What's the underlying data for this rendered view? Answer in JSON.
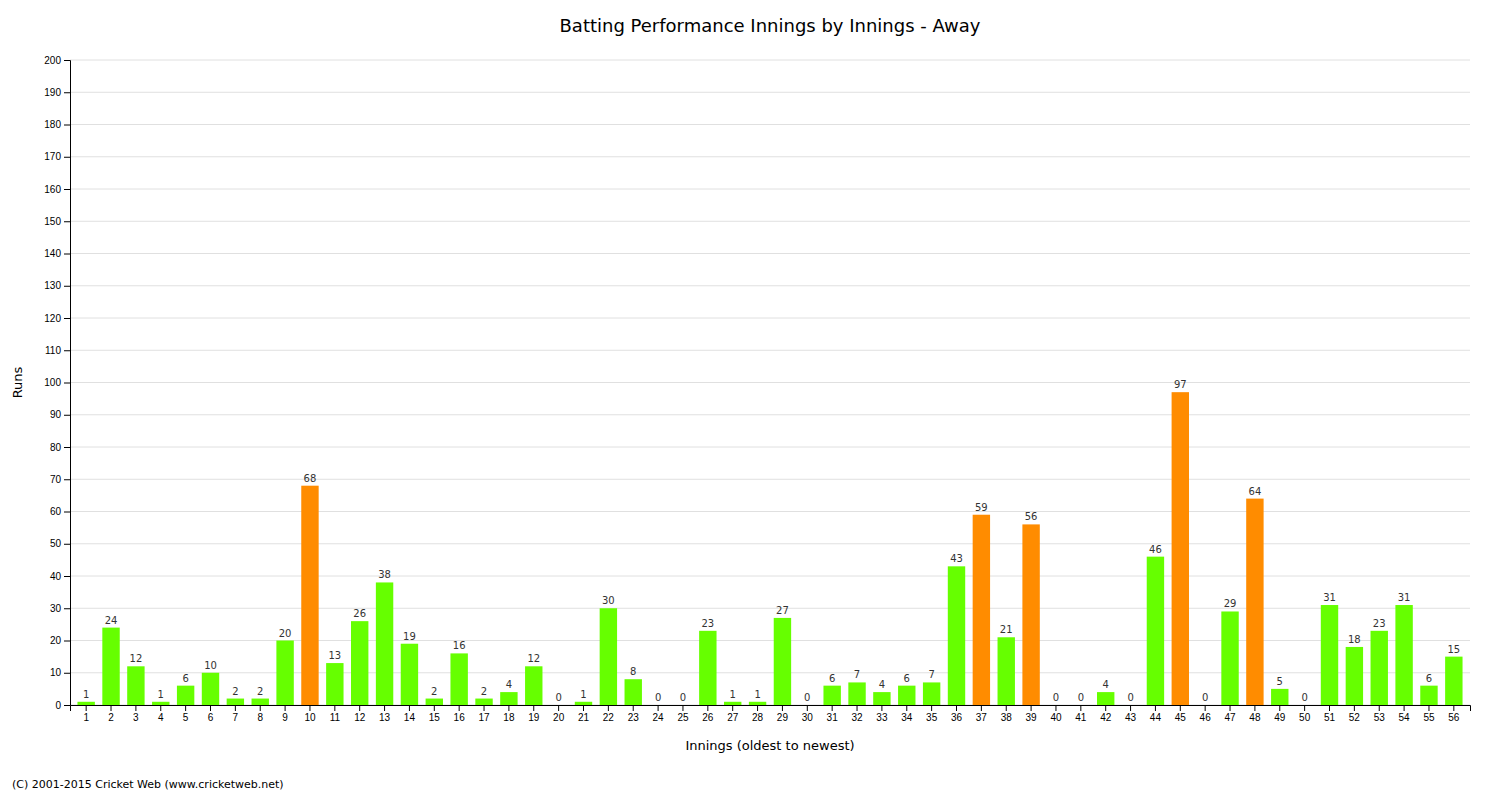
{
  "chart_data": {
    "type": "bar",
    "title": "Batting Performance Innings by Innings - Away",
    "xlabel": "Innings (oldest to newest)",
    "ylabel": "Runs",
    "annotations": [
      "(C) 2001-2015 Cricket Web (www.cricketweb.net)"
    ],
    "categories": [
      "1",
      "2",
      "3",
      "4",
      "5",
      "6",
      "7",
      "8",
      "9",
      "10",
      "11",
      "12",
      "13",
      "14",
      "15",
      "16",
      "17",
      "18",
      "19",
      "20",
      "21",
      "22",
      "23",
      "24",
      "25",
      "26",
      "27",
      "28",
      "29",
      "30",
      "31",
      "32",
      "33",
      "34",
      "35",
      "36",
      "37",
      "38",
      "39",
      "40",
      "41",
      "42",
      "43",
      "44",
      "45",
      "46",
      "47",
      "48",
      "49",
      "50",
      "51",
      "52",
      "53",
      "54",
      "55",
      "56"
    ],
    "values": [
      1,
      24,
      12,
      1,
      6,
      10,
      2,
      2,
      20,
      68,
      13,
      26,
      38,
      19,
      2,
      16,
      2,
      4,
      12,
      0,
      1,
      30,
      8,
      0,
      0,
      23,
      1,
      1,
      27,
      0,
      6,
      7,
      4,
      6,
      7,
      43,
      59,
      21,
      56,
      0,
      0,
      4,
      0,
      46,
      97,
      0,
      29,
      64,
      5,
      0,
      31,
      18,
      23,
      31,
      6,
      15
    ],
    "colors": [
      "#66ff00",
      "#66ff00",
      "#66ff00",
      "#66ff00",
      "#66ff00",
      "#66ff00",
      "#66ff00",
      "#66ff00",
      "#66ff00",
      "#ff8c00",
      "#66ff00",
      "#66ff00",
      "#66ff00",
      "#66ff00",
      "#66ff00",
      "#66ff00",
      "#66ff00",
      "#66ff00",
      "#66ff00",
      "#66ff00",
      "#66ff00",
      "#66ff00",
      "#66ff00",
      "#66ff00",
      "#66ff00",
      "#66ff00",
      "#66ff00",
      "#66ff00",
      "#66ff00",
      "#66ff00",
      "#66ff00",
      "#66ff00",
      "#66ff00",
      "#66ff00",
      "#66ff00",
      "#66ff00",
      "#ff8c00",
      "#66ff00",
      "#ff8c00",
      "#66ff00",
      "#66ff00",
      "#66ff00",
      "#66ff00",
      "#66ff00",
      "#ff8c00",
      "#66ff00",
      "#66ff00",
      "#ff8c00",
      "#66ff00",
      "#66ff00",
      "#66ff00",
      "#66ff00",
      "#66ff00",
      "#66ff00",
      "#66ff00",
      "#66ff00"
    ],
    "data_labels": true,
    "ylim": [
      0,
      200
    ],
    "yticks": [
      0,
      10,
      20,
      30,
      40,
      50,
      60,
      70,
      80,
      90,
      100,
      110,
      120,
      130,
      140,
      150,
      160,
      170,
      180,
      190,
      200
    ],
    "grid": true
  }
}
